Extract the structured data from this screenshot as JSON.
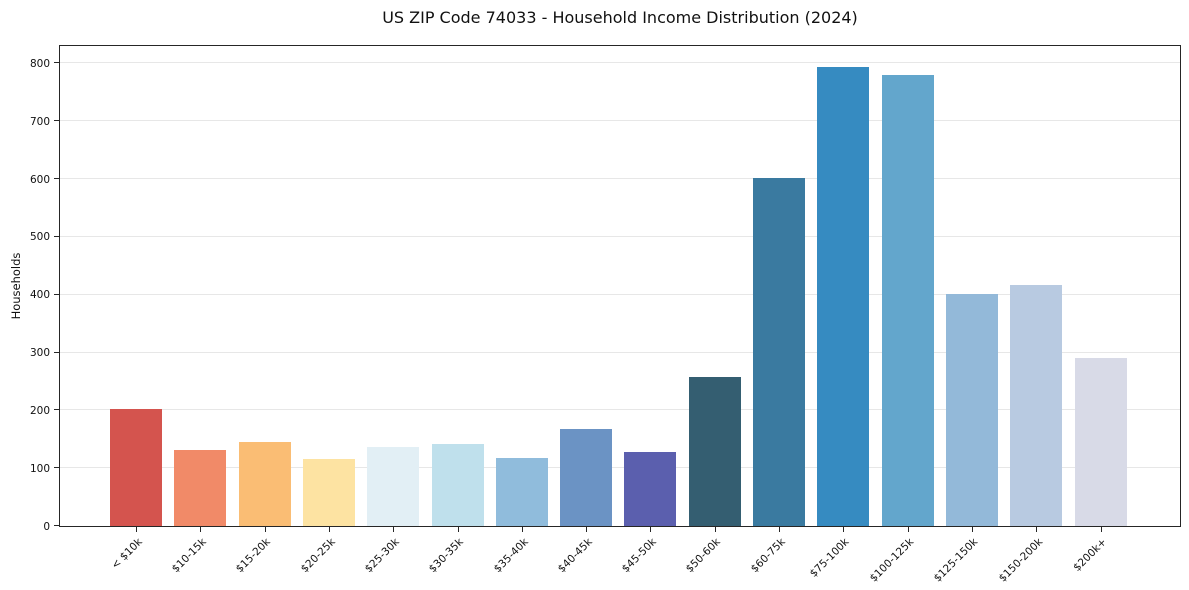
{
  "figure": {
    "title": "US ZIP Code 74033 - Household Income Distribution (2024)"
  },
  "chart_data": {
    "type": "bar",
    "title": "US ZIP Code 74033 - Household Income Distribution (2024)",
    "xlabel": "",
    "ylabel": "Households",
    "categories": [
      "< $10k",
      "$10-15k",
      "$15-20k",
      "$20-25k",
      "$25-30k",
      "$30-35k",
      "$35-40k",
      "$40-45k",
      "$45-50k",
      "$50-60k",
      "$60-75k",
      "$75-100k",
      "$100-125k",
      "$125-150k",
      "$150-200k",
      "$200k+"
    ],
    "values": [
      203,
      132,
      145,
      116,
      137,
      142,
      117,
      168,
      128,
      258,
      602,
      794,
      780,
      402,
      417,
      290
    ],
    "bar_colors": [
      "#d4544e",
      "#f18a68",
      "#fabd74",
      "#fde3a2",
      "#e2eff5",
      "#bfe0ec",
      "#90bcdc",
      "#6b93c4",
      "#5b5fae",
      "#345e71",
      "#3a7aa0",
      "#368bc1",
      "#63a6cc",
      "#93b9d9",
      "#b8cae1",
      "#d8dae7"
    ],
    "ylim": [
      0,
      833.7
    ],
    "yticks": [
      0,
      100,
      200,
      300,
      400,
      500,
      600,
      700,
      800
    ],
    "grid": "horizontal",
    "legend": "none",
    "background_color": "#ffffff",
    "gridline_color": "#e7e7e7",
    "spine_color": "#262626",
    "text_color": "#111111"
  }
}
